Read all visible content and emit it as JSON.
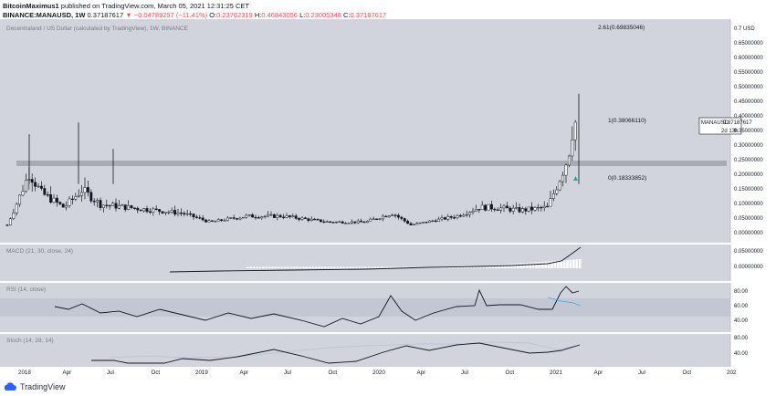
{
  "header": {
    "author": "BitcoinMaximus1",
    "published_text": "published on TradingView.com, March 05, 2021 12:31:25 CET",
    "symbol_line": "BINANCE:MANAUSD, 1W",
    "price": "0.37187617",
    "change_arrow": "▼",
    "change": "−0.04789297 (−11.41%)",
    "o_label": "O:",
    "o_value": "0.23762319",
    "h_label": "H:",
    "h_value": "0.46843056",
    "l_label": "L:",
    "l_value": "0.23005348",
    "c_label": "C:",
    "c_value": "0.37187617"
  },
  "panes": {
    "main_title": "Decentraland / US Dollar (calculated by TradingView), 1W, BINANCE",
    "macd_title": "MACD (21, 30, close, 24)",
    "rsi_title": "RSI (14, close)",
    "stoch_title": "Stoch (14, 28, 14)"
  },
  "fib_labels": {
    "level_261": "2.61(0.69835046)",
    "level_1": "1(0.38066110)",
    "level_0": "0(0.18333852)"
  },
  "price_label": {
    "symbol": "MANAUSD",
    "value": "0.37187617",
    "countdown": "2d 13h"
  },
  "main_axis": [
    "0.7 USD",
    "0.65000000",
    "0.60000000",
    "0.55000000",
    "0.50000000",
    "0.45000000",
    "0.40000000",
    "0.35000000",
    "0.30000000",
    "0.25000000",
    "0.20000000",
    "0.15000000",
    "0.10000000",
    "0.05000000",
    "0.00000000"
  ],
  "macd_axis": [
    "0.05000000",
    "0.00000000"
  ],
  "rsi_axis": [
    "80.00",
    "60.00",
    "40.00"
  ],
  "stoch_axis": [
    "80.00",
    "40.00"
  ],
  "time_axis": [
    "2018",
    "Apr",
    "Jul",
    "Oct",
    "2019",
    "Apr",
    "Jul",
    "Oct",
    "2020",
    "Apr",
    "Jul",
    "Oct",
    "2021",
    "Apr",
    "Jul",
    "Oct",
    "202"
  ],
  "footer": {
    "logo_text": "TradingView"
  },
  "colors": {
    "pane_bg": "#d1d4dc",
    "rsi_band": "#c3c7d4",
    "candle": "#131722",
    "histogram": "#ffffff",
    "signal": "#bcc5d8",
    "accent_red": "#ef5350",
    "rsi_ma": "#42a5f5",
    "arrow_green": "#26a69a"
  }
}
